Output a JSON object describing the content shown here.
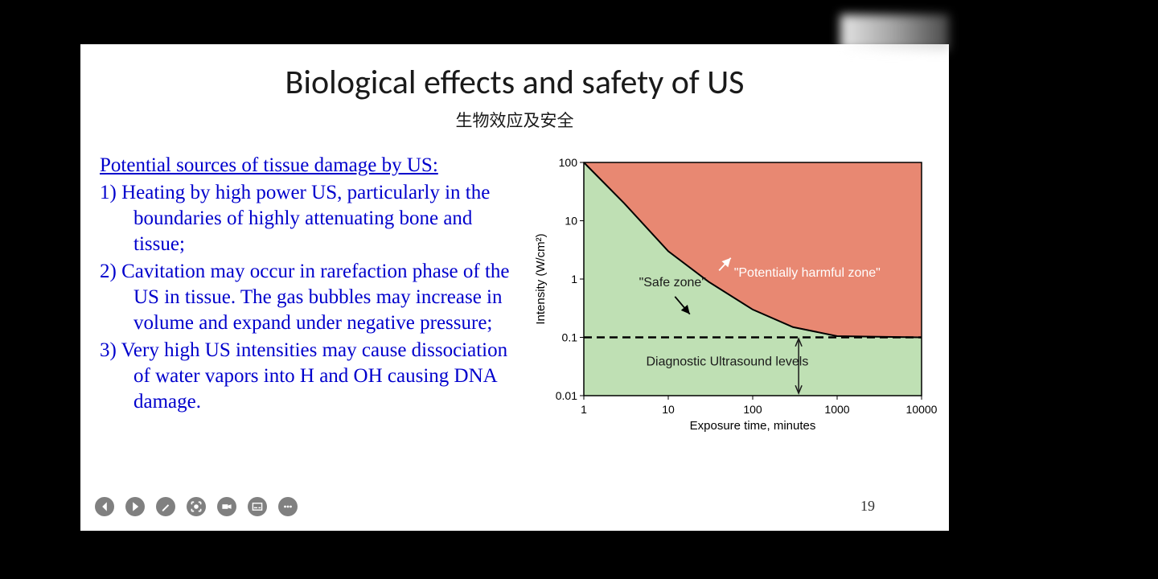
{
  "slide": {
    "title": "Biological effects and safety of US",
    "subtitle": "生物效应及安全",
    "section_heading": "Potential sources of tissue damage by US:",
    "items": [
      "1) Heating by high power US, particularly in the boundaries of highly attenuating bone and tissue;",
      "2) Cavitation may occur in rarefaction phase of the US in tissue. The gas bubbles  may increase in volume and expand under negative pressure;",
      "3) Very high US intensities may cause dissociation of water vapors into H and OH causing DNA damage."
    ],
    "page_number": "19"
  },
  "chart": {
    "type": "log-log-region",
    "xlabel": "Exposure time, minutes",
    "ylabel": "Intensity (W/cm²)",
    "xlim": [
      1,
      10000
    ],
    "ylim": [
      0.01,
      100
    ],
    "xticks": [
      1,
      10,
      100,
      1000,
      10000
    ],
    "xtick_labels": [
      "1",
      "10",
      "100",
      "1000",
      "10000"
    ],
    "yticks": [
      0.01,
      0.1,
      1,
      10,
      100
    ],
    "ytick_labels": [
      "0.01",
      "0.1",
      "1",
      "10",
      "100"
    ],
    "diagnostic_threshold": 0.1,
    "curve_points": [
      {
        "x": 1,
        "y": 100
      },
      {
        "x": 3,
        "y": 20
      },
      {
        "x": 10,
        "y": 3
      },
      {
        "x": 30,
        "y": 0.9
      },
      {
        "x": 100,
        "y": 0.3
      },
      {
        "x": 300,
        "y": 0.15
      },
      {
        "x": 1000,
        "y": 0.105
      },
      {
        "x": 10000,
        "y": 0.1
      }
    ],
    "colors": {
      "safe_zone": "#bfe0b4",
      "harmful_zone": "#e88872",
      "curve": "#000000",
      "dashed": "#000000",
      "axis": "#000000",
      "tick_text": "#000000",
      "label_text": "#000000",
      "harmful_label": "#ffffff",
      "annotation_text": "#1a1a1a"
    },
    "fonts": {
      "tick_size": 14,
      "axis_label_size": 15,
      "annotation_size": 16
    },
    "annotations": {
      "safe_zone": "\"Safe zone\"",
      "harmful_zone": "\"Potentially harmful zone\"",
      "diagnostic": "Diagnostic Ultrasound levels"
    }
  },
  "toolbar": {
    "buttons": [
      "prev",
      "play",
      "pen",
      "focus",
      "camera",
      "subtitle",
      "more"
    ]
  }
}
